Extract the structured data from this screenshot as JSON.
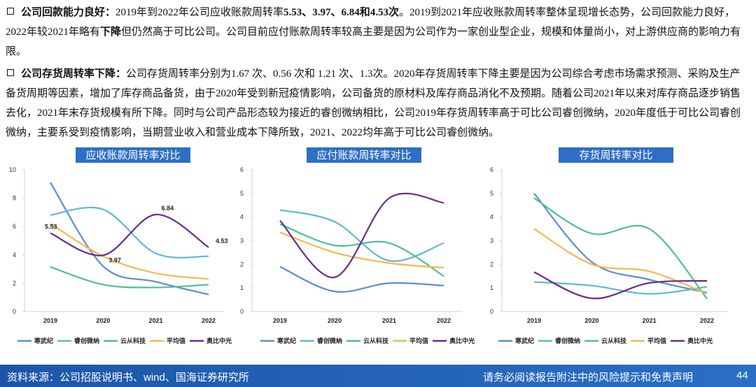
{
  "paragraphs": [
    {
      "runs": [
        {
          "text": "公司回款能力良好：",
          "bold": true
        },
        {
          "text": "2019年到2022年公司应收账款周转率",
          "bold": false
        },
        {
          "text": "5.53、3.97、6.84和4.53次",
          "bold": true
        },
        {
          "text": "。2019到2021年应收账款周转率整体呈现增长态势，公司回款能力良好，2022年较2021年略有",
          "bold": false
        },
        {
          "text": "下降",
          "bold": true
        },
        {
          "text": "但仍然高于可比公司。公司目前应付账款周转率较高主要是因为公司作为一家创业型企业，规模和体量尚小，对上游供应商的影响力有限。",
          "bold": false
        }
      ]
    },
    {
      "runs": [
        {
          "text": "公司存货周转率下降：",
          "bold": true
        },
        {
          "text": "公司存货周转率分别为1.67 次、0.56 次和 1.21 次、1.3次。2020年存货周转率下降主要是因为公司综合考虑市场需求预测、采购及生产备货周期等因素，增加了库存商品备货，由于2020年受到新冠疫情影响，公司备货的原材料及库存商品消化不及预期。随着公司2021年以来对库存商品逐步销售去化，2021年末存货规模有所下降。同时与公司产品形态较为接近的睿创微纳相比，公司2019年存货周转率高于可比公司睿创微纳，2020年度低于可比公司睿创微纳，主要系受到疫情影响，当期营业收入和营业成本下降所致，2021、2022均年高于可比公司睿创微纳。",
          "bold": false
        }
      ]
    }
  ],
  "chart_data": [
    {
      "type": "line",
      "title": "应收账款周转率对比",
      "categories": [
        "2019",
        "2020",
        "2021",
        "2022"
      ],
      "ylim": [
        0,
        10
      ],
      "yticks": [
        0,
        2,
        4,
        6,
        8,
        10
      ],
      "series": [
        {
          "name": "寒武纪",
          "color": "#5b8ed6",
          "values": [
            9.1,
            3.2,
            2.1,
            1.2
          ]
        },
        {
          "name": "睿创微纳",
          "color": "#5fb8d2",
          "values": [
            6.8,
            7.2,
            4.1,
            3.9
          ]
        },
        {
          "name": "云从科技",
          "color": "#4dbf9a",
          "values": [
            3.15,
            1.9,
            1.7,
            1.9
          ]
        },
        {
          "name": "平均值",
          "color": "#f5b84a",
          "values": [
            6.2,
            3.9,
            2.7,
            2.3
          ]
        },
        {
          "name": "奥比中光",
          "color": "#6a2a8c",
          "values": [
            5.53,
            3.97,
            6.84,
            4.53
          ],
          "data_labels": true
        }
      ]
    },
    {
      "type": "line",
      "title": "应付账款周转率对比",
      "categories": [
        "2019",
        "2020",
        "2021",
        "2022"
      ],
      "ylim": [
        0,
        6
      ],
      "yticks": [
        0,
        1,
        2,
        3,
        4,
        5,
        6
      ],
      "series": [
        {
          "name": "寒武纪",
          "color": "#5b8ed6",
          "values": [
            1.9,
            0.85,
            1.2,
            1.1
          ]
        },
        {
          "name": "睿创微纳",
          "color": "#5fb8d2",
          "values": [
            4.3,
            3.8,
            2.15,
            2.9
          ]
        },
        {
          "name": "云从科技",
          "color": "#4dbf9a",
          "values": [
            3.7,
            2.8,
            2.9,
            1.5
          ]
        },
        {
          "name": "平均值",
          "color": "#f5b84a",
          "values": [
            3.35,
            2.5,
            2.05,
            1.85
          ]
        },
        {
          "name": "奥比中光",
          "color": "#6a2a8c",
          "values": [
            3.85,
            1.45,
            4.8,
            4.6
          ]
        }
      ]
    },
    {
      "type": "line",
      "title": "存货周转率对比",
      "categories": [
        "2019",
        "2020",
        "2021",
        "2022"
      ],
      "ylim": [
        0,
        6
      ],
      "yticks": [
        0,
        1,
        2,
        3,
        4,
        5,
        6
      ],
      "series": [
        {
          "name": "寒武纪",
          "color": "#5b8ed6",
          "values": [
            5.0,
            2.1,
            1.35,
            0.8
          ]
        },
        {
          "name": "睿创微纳",
          "color": "#5fb8d2",
          "values": [
            1.25,
            1.1,
            0.75,
            1.05
          ]
        },
        {
          "name": "云从科技",
          "color": "#4dbf9a",
          "values": [
            4.8,
            3.3,
            3.5,
            0.55
          ]
        },
        {
          "name": "平均值",
          "color": "#f5b84a",
          "values": [
            3.5,
            2.0,
            1.7,
            0.75
          ]
        },
        {
          "name": "奥比中光",
          "color": "#6a2a8c",
          "values": [
            1.67,
            0.56,
            1.21,
            1.3
          ]
        }
      ]
    }
  ],
  "footer": {
    "source": "资料来源：公司招股说明书、wind、国海证券研究所",
    "disclaimer": "请务必阅读报告附注中的风险提示和免责声明",
    "page": "44"
  }
}
